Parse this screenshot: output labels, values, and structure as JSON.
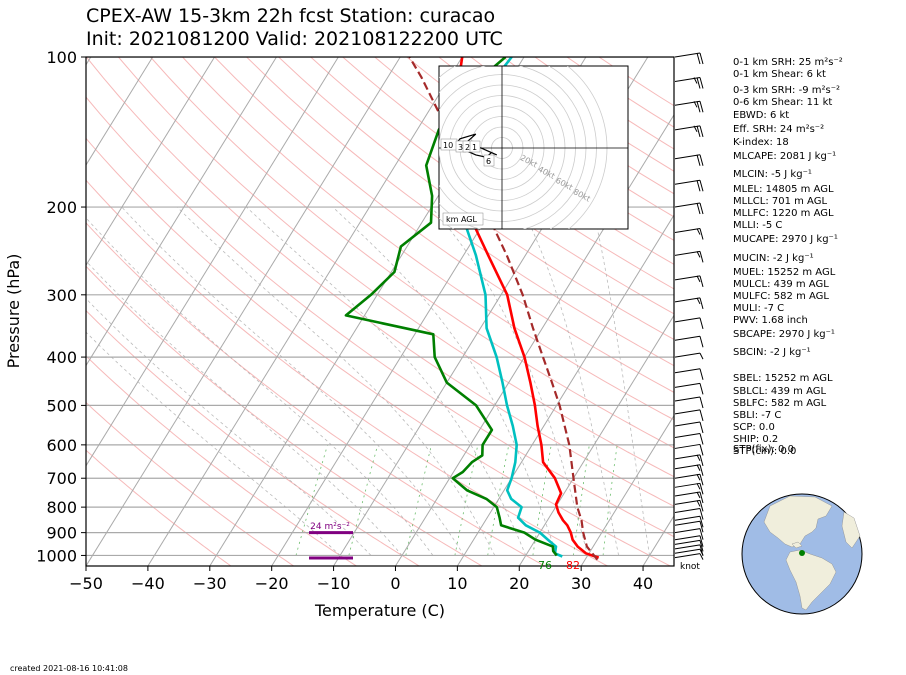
{
  "title": {
    "line1": "CPEX-AW 15-3km  22h fcst  Station: curacao",
    "line2": "Init: 2021081200  Valid: 202108122200 UTC"
  },
  "chart_data": {
    "type": "line",
    "xlabel": "Temperature (C)",
    "ylabel": "Pressure (hPa)",
    "xlim": [
      -50,
      45
    ],
    "ylim": [
      1050,
      100
    ],
    "y_scale": "log",
    "xticks": [
      "−50",
      "−40",
      "−30",
      "−20",
      "−10",
      "0",
      "10",
      "20",
      "30",
      "40"
    ],
    "yticks": [
      "100",
      "200",
      "300",
      "400",
      "500",
      "600",
      "700",
      "800",
      "900",
      "1000"
    ],
    "series": [
      {
        "key": "temperature",
        "color": "#ff0000",
        "points": [
          [
            1010,
            32
          ],
          [
            990,
            29.5
          ],
          [
            960,
            27.5
          ],
          [
            930,
            26
          ],
          [
            900,
            25
          ],
          [
            870,
            23.7
          ],
          [
            850,
            22.5
          ],
          [
            820,
            21
          ],
          [
            790,
            19.8
          ],
          [
            750,
            19.5
          ],
          [
            700,
            17
          ],
          [
            650,
            13.5
          ],
          [
            600,
            11.5
          ],
          [
            550,
            9
          ],
          [
            500,
            6.5
          ],
          [
            450,
            3.5
          ],
          [
            400,
            0
          ],
          [
            350,
            -4.5
          ],
          [
            300,
            -9
          ],
          [
            250,
            -16
          ],
          [
            200,
            -24.5
          ],
          [
            170,
            -30
          ],
          [
            150,
            -33
          ],
          [
            120,
            -37
          ],
          [
            100,
            -40
          ]
        ]
      },
      {
        "key": "dewpoint",
        "color": "#00c0c0",
        "points": [
          [
            1005,
            26
          ],
          [
            990,
            24.5
          ],
          [
            960,
            24
          ],
          [
            930,
            22
          ],
          [
            900,
            20
          ],
          [
            870,
            17
          ],
          [
            840,
            15
          ],
          [
            800,
            14.5
          ],
          [
            770,
            12
          ],
          [
            740,
            10.5
          ],
          [
            700,
            10
          ],
          [
            650,
            9
          ],
          [
            600,
            7.5
          ],
          [
            550,
            5
          ],
          [
            500,
            2
          ],
          [
            450,
            -1
          ],
          [
            400,
            -4.5
          ],
          [
            350,
            -9
          ],
          [
            300,
            -12.5
          ],
          [
            250,
            -18
          ],
          [
            200,
            -25.5
          ],
          [
            170,
            -30
          ],
          [
            150,
            -32
          ],
          [
            130,
            -33.5
          ],
          [
            100,
            -32
          ]
        ]
      },
      {
        "key": "wetbulb",
        "color": "#007f00",
        "points": [
          [
            1000,
            25
          ],
          [
            980,
            24
          ],
          [
            960,
            23.5
          ],
          [
            930,
            20
          ],
          [
            900,
            17.5
          ],
          [
            870,
            13
          ],
          [
            840,
            12
          ],
          [
            800,
            10.5
          ],
          [
            770,
            8
          ],
          [
            740,
            4
          ],
          [
            700,
            0.5
          ],
          [
            680,
            1.5
          ],
          [
            650,
            2
          ],
          [
            630,
            3
          ],
          [
            600,
            2
          ],
          [
            560,
            2
          ],
          [
            500,
            -3
          ],
          [
            450,
            -10
          ],
          [
            400,
            -14.5
          ],
          [
            360,
            -17
          ],
          [
            330,
            -33
          ],
          [
            300,
            -31
          ],
          [
            270,
            -29.5
          ],
          [
            240,
            -31
          ],
          [
            215,
            -28.5
          ],
          [
            190,
            -31
          ],
          [
            165,
            -35
          ],
          [
            140,
            -36.5
          ],
          [
            120,
            -36.5
          ],
          [
            100,
            -33
          ]
        ]
      },
      {
        "key": "parcel",
        "color": "#a52a2a",
        "dashed": true,
        "points": [
          [
            1020,
            32
          ],
          [
            960,
            29
          ],
          [
            900,
            27
          ],
          [
            850,
            25.5
          ],
          [
            800,
            23.5
          ],
          [
            700,
            20
          ],
          [
            600,
            16
          ],
          [
            500,
            10.5
          ],
          [
            450,
            7
          ],
          [
            400,
            3
          ],
          [
            350,
            -1.5
          ],
          [
            300,
            -6.5
          ],
          [
            250,
            -13
          ],
          [
            200,
            -21.5
          ],
          [
            170,
            -28
          ],
          [
            150,
            -33
          ],
          [
            130,
            -38
          ],
          [
            110,
            -44.5
          ],
          [
            100,
            -48.5
          ]
        ]
      }
    ],
    "surface_labels": {
      "dewpoint": "76",
      "temperature": "82"
    },
    "srh_label": "24 m²s⁻²",
    "srh_bars_hpa": [
      900,
      1012
    ],
    "wind_barbs": [
      {
        "p": 1010,
        "kt": 6
      },
      {
        "p": 990,
        "kt": 6
      },
      {
        "p": 970,
        "kt": 8
      },
      {
        "p": 950,
        "kt": 9
      },
      {
        "p": 930,
        "kt": 10
      },
      {
        "p": 900,
        "kt": 10
      },
      {
        "p": 870,
        "kt": 11
      },
      {
        "p": 850,
        "kt": 11
      },
      {
        "p": 820,
        "kt": 12
      },
      {
        "p": 790,
        "kt": 13
      },
      {
        "p": 760,
        "kt": 14
      },
      {
        "p": 730,
        "kt": 14
      },
      {
        "p": 700,
        "kt": 15
      },
      {
        "p": 670,
        "kt": 14
      },
      {
        "p": 640,
        "kt": 13
      },
      {
        "p": 610,
        "kt": 12
      },
      {
        "p": 580,
        "kt": 11
      },
      {
        "p": 550,
        "kt": 10
      },
      {
        "p": 520,
        "kt": 10
      },
      {
        "p": 490,
        "kt": 9
      },
      {
        "p": 460,
        "kt": 8
      },
      {
        "p": 430,
        "kt": 8
      },
      {
        "p": 400,
        "kt": 7
      },
      {
        "p": 370,
        "kt": 9
      },
      {
        "p": 340,
        "kt": 10
      },
      {
        "p": 310,
        "kt": 14
      },
      {
        "p": 280,
        "kt": 16
      },
      {
        "p": 250,
        "kt": 16
      },
      {
        "p": 225,
        "kt": 17
      },
      {
        "p": 200,
        "kt": 18
      },
      {
        "p": 180,
        "kt": 21
      },
      {
        "p": 160,
        "kt": 22
      },
      {
        "p": 140,
        "kt": 24
      },
      {
        "p": 125,
        "kt": 24
      },
      {
        "p": 112,
        "kt": 23
      },
      {
        "p": 100,
        "kt": 22
      }
    ],
    "barb_unit_label": "knot",
    "hodograph": {
      "ring_labels": [
        "20kt",
        "40kt",
        "60kt",
        "80kt"
      ],
      "height_labels": [
        "10",
        "3",
        "2",
        "1",
        "6"
      ],
      "corner_label": "km AGL",
      "points": [
        [
          -7,
          2
        ],
        [
          -5,
          6
        ],
        [
          -8,
          4
        ],
        [
          -9,
          1
        ],
        [
          -7,
          -1
        ],
        [
          -5,
          -3
        ],
        [
          -3,
          -4
        ],
        [
          -2,
          -2
        ],
        [
          -1,
          -3
        ],
        [
          -3,
          -1
        ],
        [
          -4,
          0
        ],
        [
          -6,
          1
        ]
      ]
    }
  },
  "indices": [
    "0-1 km SRH: 25 m²s⁻²",
    "0-1 km Shear: 6 kt",
    "0-3 km SRH: -9 m²s⁻²",
    "0-6 km Shear: 11 kt",
    "EBWD: 6 kt",
    "Eff. SRH: 24 m²s⁻²",
    "K-index: 18",
    "MLCAPE: 2081 J kg⁻¹",
    "MLCIN: -5 J kg⁻¹",
    "MLEL: 14805 m AGL",
    "MLLCL: 701 m AGL",
    "MLLFC: 1220 m AGL",
    "MLLI: -5 C",
    "MUCAPE: 2970 J kg⁻¹",
    "MUCIN: -2 J kg⁻¹",
    "MUEL: 15252 m AGL",
    "MULCL: 439 m AGL",
    "MULFC: 582 m AGL",
    "MULI: -7 C",
    "PWV: 1.68 inch",
    "SBCAPE: 2970 J kg⁻¹",
    "SBCIN: -2 J kg⁻¹",
    "SBEL: 15252 m AGL",
    "SBLCL: 439 m AGL",
    "SBLFC: 582 m AGL",
    "SBLI: -7 C",
    "SCP: 0.0",
    "SHIP: 0.2",
    "STP(cin): 0.0",
    "STP(fix): 0.0"
  ],
  "created": "created 2021-08-16 10:41:08",
  "colors": {
    "temperature": "#ff0000",
    "dewpoint": "#00c0c0",
    "wetbulb": "#007f00",
    "parcel": "#a52a2a",
    "srh": "#800080",
    "ocean": "#a0bce6",
    "land": "#f0eedc"
  }
}
